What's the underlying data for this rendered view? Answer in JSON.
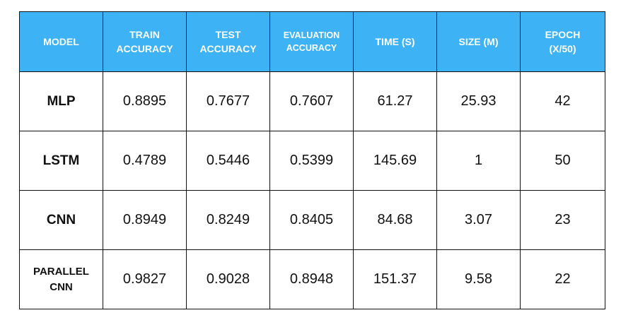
{
  "table": {
    "headers": [
      [
        "MODEL"
      ],
      [
        "TRAIN",
        "ACCURACY"
      ],
      [
        "TEST",
        "ACCURACY"
      ],
      [
        "EVALUATION",
        "ACCURACY"
      ],
      [
        "TIME (s)"
      ],
      [
        "SIZE (M)"
      ],
      [
        "EPOCH",
        "(x/50)"
      ]
    ],
    "rows": [
      {
        "model": [
          "MLP"
        ],
        "cells": [
          "0.8895",
          "0.7677",
          "0.7607",
          "61.27",
          "25.93",
          "42"
        ]
      },
      {
        "model": [
          "LSTM"
        ],
        "cells": [
          "0.4789",
          "0.5446",
          "0.5399",
          "145.69",
          "1",
          "50"
        ]
      },
      {
        "model": [
          "CNN"
        ],
        "cells": [
          "0.8949",
          "0.8249",
          "0.8405",
          "84.68",
          "3.07",
          "23"
        ]
      },
      {
        "model": [
          "PARALLEL",
          "CNN"
        ],
        "cells": [
          "0.9827",
          "0.9028",
          "0.8948",
          "151.37",
          "9.58",
          "22"
        ]
      }
    ],
    "header_color": "#3db2f5",
    "header_text_color": "#ffffff",
    "border_color": "#111111"
  }
}
